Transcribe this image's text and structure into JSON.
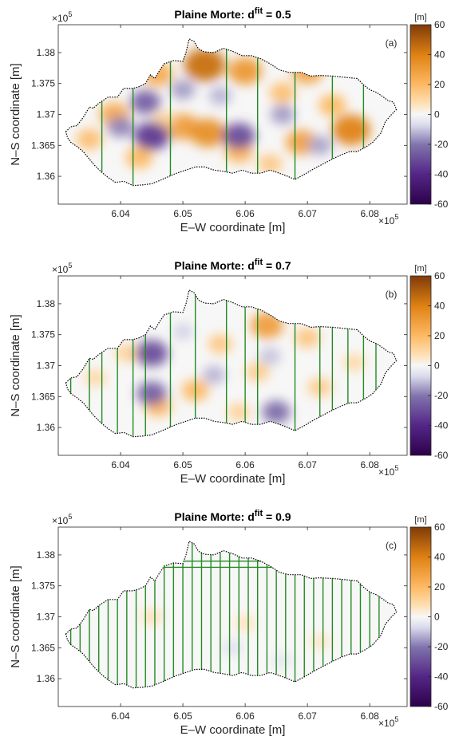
{
  "chart_data": [
    {
      "type": "heatmap",
      "title_prefix": "Plaine Morte: d",
      "title_sup": "fit",
      "title_suffix": " = 0.5",
      "panel_label": "(a)",
      "xlabel": "E–W coordinate [m]",
      "ylabel": "N–S coordinate [m]",
      "x_exponent": "5",
      "y_exponent": "5",
      "xlim": [
        6.03,
        6.086
      ],
      "ylim": [
        1.3555,
        1.3845
      ],
      "xticks": [
        "6.04",
        "6.05",
        "6.06",
        "6.07",
        "6.08"
      ],
      "yticks": [
        "1.36",
        "1.365",
        "1.37",
        "1.375",
        "1.38"
      ],
      "colorbar": {
        "unit": "[m]",
        "min": -60,
        "max": 60,
        "ticks": [
          "60",
          "40",
          "20",
          "0",
          "-20",
          "-40",
          "-60"
        ]
      },
      "survey_lines_x": [
        6.037,
        6.042,
        6.048,
        6.057,
        6.062,
        6.068,
        6.074,
        6.079
      ],
      "horizontal_lines": [],
      "anomalies": [
        {
          "x": 6.0535,
          "y": 1.378,
          "v": 45
        },
        {
          "x": 6.05,
          "y": 1.368,
          "v": 30
        },
        {
          "x": 6.054,
          "y": 1.367,
          "v": 35
        },
        {
          "x": 6.06,
          "y": 1.377,
          "v": 32
        },
        {
          "x": 6.07,
          "y": 1.377,
          "v": 28
        },
        {
          "x": 6.077,
          "y": 1.3675,
          "v": 40
        },
        {
          "x": 6.046,
          "y": 1.3765,
          "v": 25
        },
        {
          "x": 6.039,
          "y": 1.37,
          "v": 25
        },
        {
          "x": 6.035,
          "y": 1.366,
          "v": 18
        },
        {
          "x": 6.043,
          "y": 1.363,
          "v": 20
        },
        {
          "x": 6.059,
          "y": 1.364,
          "v": 22
        },
        {
          "x": 6.069,
          "y": 1.3655,
          "v": 28
        },
        {
          "x": 6.066,
          "y": 1.3735,
          "v": 18
        },
        {
          "x": 6.074,
          "y": 1.3715,
          "v": 20
        },
        {
          "x": 6.064,
          "y": 1.362,
          "v": 15
        },
        {
          "x": 6.047,
          "y": 1.369,
          "v": 12
        },
        {
          "x": 6.045,
          "y": 1.3665,
          "v": -35
        },
        {
          "x": 6.044,
          "y": 1.372,
          "v": -25
        },
        {
          "x": 6.059,
          "y": 1.3665,
          "v": -30
        },
        {
          "x": 6.05,
          "y": 1.374,
          "v": -15
        },
        {
          "x": 6.04,
          "y": 1.368,
          "v": -18
        },
        {
          "x": 6.066,
          "y": 1.37,
          "v": -15
        },
        {
          "x": 6.072,
          "y": 1.365,
          "v": -14
        },
        {
          "x": 6.056,
          "y": 1.373,
          "v": -12
        }
      ]
    },
    {
      "type": "heatmap",
      "title_prefix": "Plaine Morte: d",
      "title_sup": "fit",
      "title_suffix": " = 0.7",
      "panel_label": "(b)",
      "xlabel": "E–W coordinate [m]",
      "ylabel": "N–S coordinate [m]",
      "x_exponent": "5",
      "y_exponent": "5",
      "xlim": [
        6.03,
        6.086
      ],
      "ylim": [
        1.3555,
        1.3845
      ],
      "xticks": [
        "6.04",
        "6.05",
        "6.06",
        "6.07",
        "6.08"
      ],
      "yticks": [
        "1.36",
        "1.365",
        "1.37",
        "1.375",
        "1.38"
      ],
      "colorbar": {
        "unit": "[m]",
        "min": -60,
        "max": 60,
        "ticks": [
          "60",
          "40",
          "20",
          "0",
          "-20",
          "-40",
          "-60"
        ]
      },
      "survey_lines_x": [
        6.032,
        6.035,
        6.037,
        6.0395,
        6.042,
        6.044,
        6.048,
        6.052,
        6.057,
        6.06,
        6.062,
        6.068,
        6.072,
        6.074,
        6.0765,
        6.079,
        6.081
      ],
      "horizontal_lines": [],
      "anomalies": [
        {
          "x": 6.0635,
          "y": 1.3765,
          "v": 30
        },
        {
          "x": 6.052,
          "y": 1.366,
          "v": 20
        },
        {
          "x": 6.046,
          "y": 1.3635,
          "v": 20
        },
        {
          "x": 6.056,
          "y": 1.3735,
          "v": 15
        },
        {
          "x": 6.062,
          "y": 1.369,
          "v": 14
        },
        {
          "x": 6.07,
          "y": 1.3745,
          "v": 16
        },
        {
          "x": 6.072,
          "y": 1.3665,
          "v": 14
        },
        {
          "x": 6.041,
          "y": 1.372,
          "v": 12
        },
        {
          "x": 6.036,
          "y": 1.368,
          "v": 10
        },
        {
          "x": 6.0775,
          "y": 1.3705,
          "v": 10
        },
        {
          "x": 6.059,
          "y": 1.3625,
          "v": 12
        },
        {
          "x": 6.045,
          "y": 1.372,
          "v": -30
        },
        {
          "x": 6.045,
          "y": 1.3655,
          "v": -25
        },
        {
          "x": 6.065,
          "y": 1.3625,
          "v": -22
        },
        {
          "x": 6.055,
          "y": 1.3685,
          "v": -12
        },
        {
          "x": 6.064,
          "y": 1.3715,
          "v": -10
        },
        {
          "x": 6.05,
          "y": 1.3755,
          "v": -8
        }
      ]
    },
    {
      "type": "heatmap",
      "title_prefix": "Plaine Morte: d",
      "title_sup": "fit",
      "title_suffix": " = 0.9",
      "panel_label": "(c)",
      "xlabel": "E–W coordinate [m]",
      "ylabel": "N–S coordinate [m]",
      "x_exponent": "5",
      "y_exponent": "5",
      "xlim": [
        6.03,
        6.086
      ],
      "ylim": [
        1.3555,
        1.3845
      ],
      "xticks": [
        "6.04",
        "6.05",
        "6.06",
        "6.07",
        "6.08"
      ],
      "yticks": [
        "1.36",
        "1.365",
        "1.37",
        "1.375",
        "1.38"
      ],
      "colorbar": {
        "unit": "[m]",
        "min": -60,
        "max": 60,
        "ticks": [
          "60",
          "40",
          "20",
          "0",
          "-20",
          "-40",
          "-60"
        ]
      },
      "survey_lines_x": [
        6.032,
        6.0335,
        6.035,
        6.0365,
        6.038,
        6.0395,
        6.041,
        6.0425,
        6.044,
        6.0455,
        6.047,
        6.0485,
        6.05,
        6.0515,
        6.053,
        6.0545,
        6.056,
        6.0575,
        6.059,
        6.0605,
        6.062,
        6.0635,
        6.065,
        6.0665,
        6.068,
        6.0695,
        6.071,
        6.0725,
        6.074,
        6.0755,
        6.077,
        6.0785,
        6.08,
        6.0815
      ],
      "horizontal_lines": [
        {
          "y": 1.378,
          "x0": 6.047,
          "x1": 6.069
        },
        {
          "y": 1.379,
          "x0": 6.049,
          "x1": 6.066
        }
      ],
      "anomalies": [
        {
          "x": 6.045,
          "y": 1.37,
          "v": 8
        },
        {
          "x": 6.06,
          "y": 1.369,
          "v": 7
        },
        {
          "x": 6.072,
          "y": 1.366,
          "v": 6
        },
        {
          "x": 6.058,
          "y": 1.365,
          "v": -6
        },
        {
          "x": 6.066,
          "y": 1.363,
          "v": -5
        }
      ]
    }
  ]
}
